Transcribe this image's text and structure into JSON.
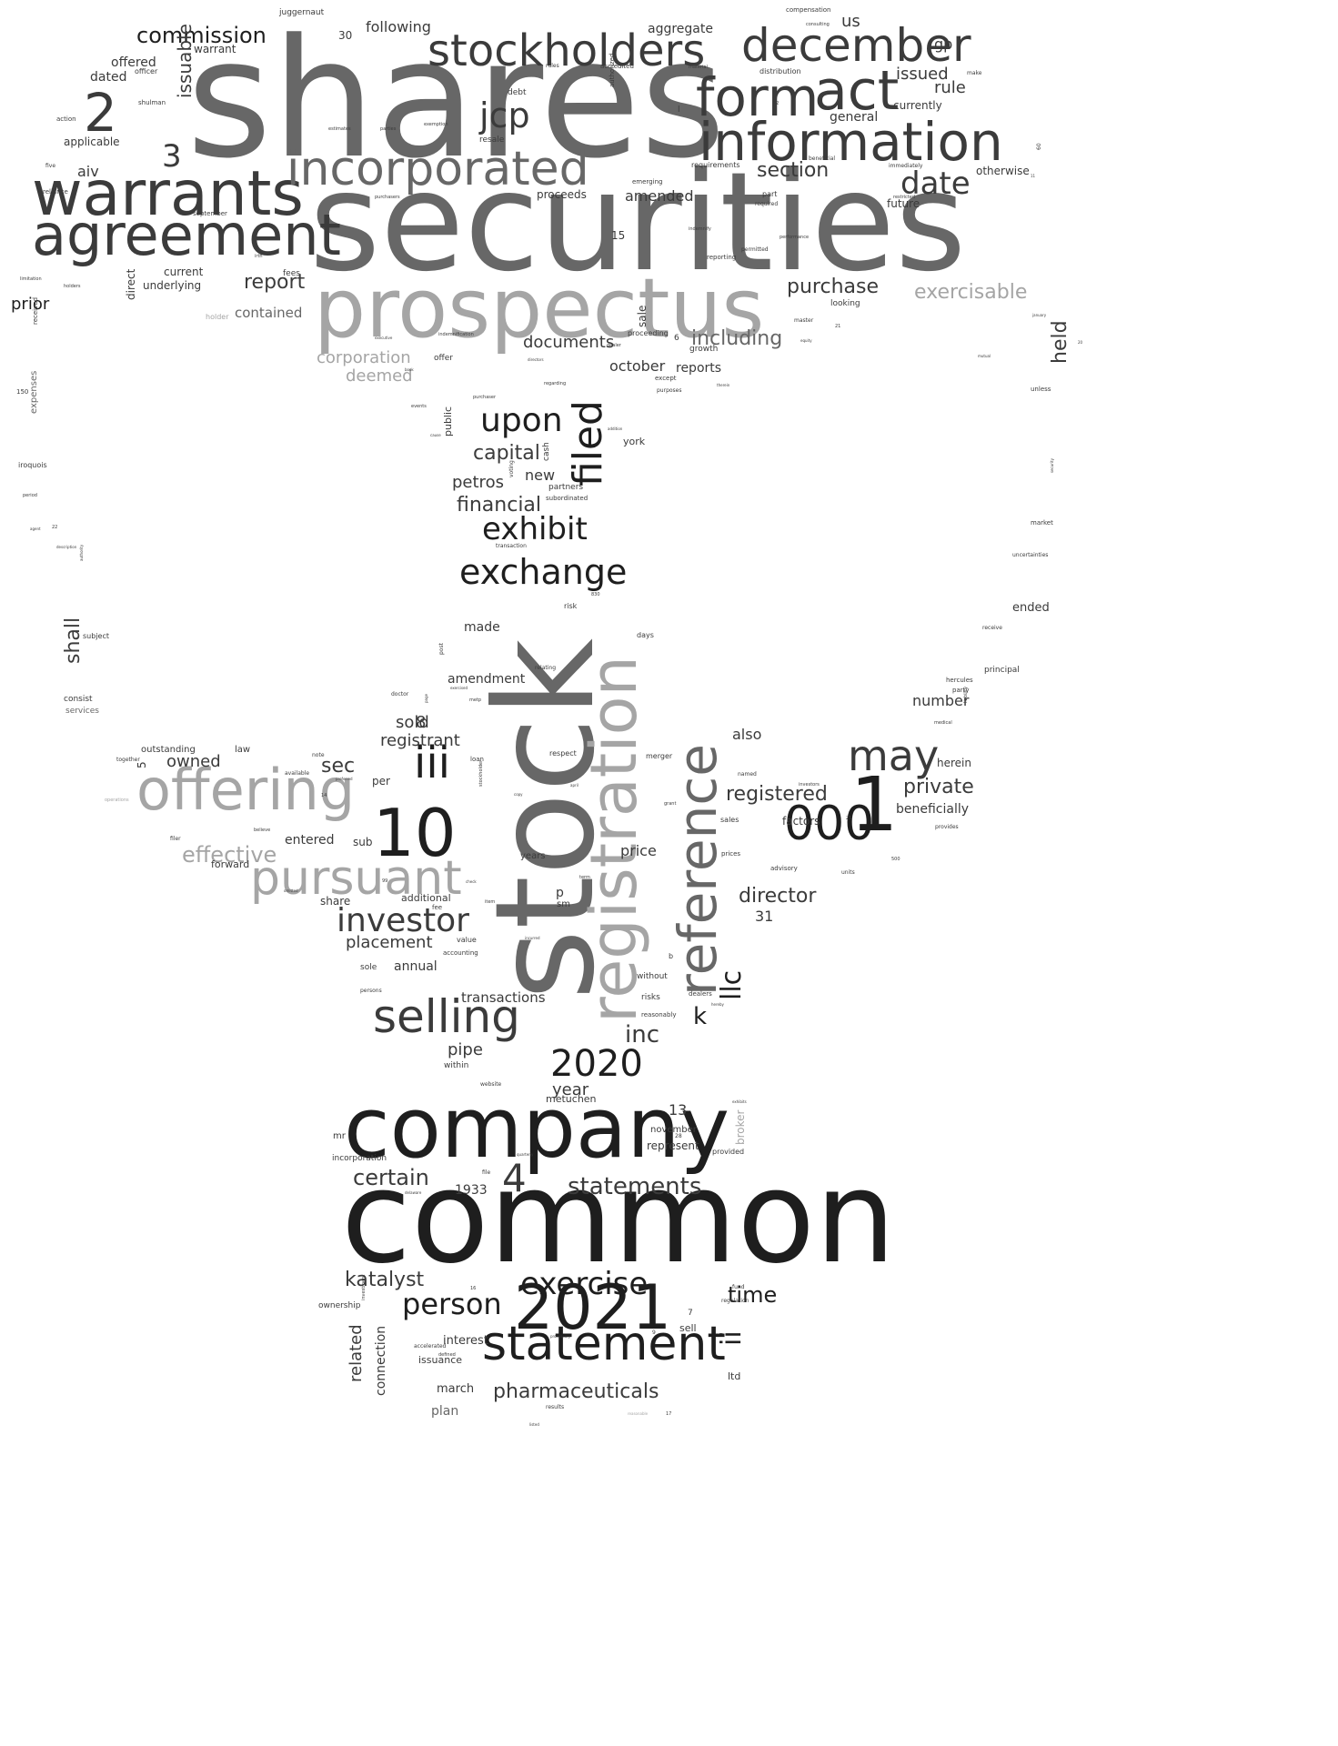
{
  "colors": {
    "background": "#ffffff",
    "tones": [
      "#1e1e1e",
      "#3b3b3b",
      "#676767",
      "#a5a5a5"
    ]
  },
  "words": {
    "shares": "shares",
    "securities": "securities",
    "common": "common",
    "stock": "stock",
    "company": "company",
    "prospectus": "prospectus",
    "registration": "registration",
    "warrants": "warrants",
    "agreement": "agreement",
    "incorporated": "incorporated",
    "information": "information",
    "stockholders": "stockholders",
    "december": "december",
    "form": "form",
    "act": "act",
    "offering": "offering",
    "reference": "reference",
    "selling": "selling",
    "pursuant": "pursuant",
    "statement": "statement",
    "n2021": "2021",
    "n2020": "2020",
    "n10": "10",
    "n000": "000",
    "n1": "1",
    "n2": "2",
    "n3": "3",
    "n4": "4",
    "iii": "iii",
    "may": "may",
    "investor": "investor",
    "exchange": "exchange",
    "exhibit": "exhibit",
    "upon": "upon",
    "filed": "filed",
    "exercise": "exercise",
    "person": "person",
    "date": "date",
    "jcp": "jcp",
    "llc": "llc",
    "ii": "ii",
    "statements": "statements",
    "certain": "certain",
    "katalyst": "katalyst",
    "time": "time",
    "inc": "inc",
    "pharmaceuticals": "pharmaceuticals",
    "commission": "commission",
    "effective": "effective",
    "registered": "registered",
    "director": "director",
    "private": "private",
    "purchase": "purchase",
    "including": "including",
    "section": "section",
    "report": "report",
    "capital": "capital",
    "financial": "financial",
    "documents": "documents",
    "placement": "placement",
    "sec": "sec",
    "shall": "shall",
    "exercisable": "exercisable",
    "issuable": "issuable",
    "held": "held",
    "rule": "rule",
    "issued": "issued",
    "amended": "amended",
    "corporation": "corporation",
    "deemed": "deemed",
    "contained": "contained",
    "prior": "prior",
    "aiv": "aiv",
    "related": "related",
    "connection": "connection",
    "pipe": "pipe",
    "year": "year",
    "k": "k",
    "sold": "sold",
    "n8": "8",
    "registrant": "registrant",
    "owned": "owned",
    "entered": "entered",
    "petros": "petros",
    "new": "new",
    "october": "october",
    "reports": "reports",
    "also": "also",
    "number": "number",
    "beneficially": "beneficially",
    "factors": "factors",
    "price": "price",
    "transactions": "transactions",
    "amendment": "amendment",
    "made": "made",
    "annual": "annual",
    "plan": "plan",
    "march": "march",
    "interest": "interest",
    "issuance": "issuance",
    "ownership": "ownership",
    "incorporation": "incorporation",
    "n1933": "1933",
    "n13": "13",
    "november": "november",
    "represent": "represent",
    "broker": "broker",
    "following": "following",
    "aggregate": "aggregate",
    "us": "us",
    "gp": "gp",
    "general": "general",
    "currently": "currently",
    "otherwise": "otherwise",
    "future": "future",
    "offered": "offered",
    "dated": "dated",
    "warrant": "warrant",
    "applicable": "applicable",
    "underlying": "underlying",
    "current": "current",
    "direct": "direct",
    "expenses": "expenses",
    "n31": "31",
    "n15": "15",
    "n30": "30",
    "n5": "5",
    "n7": "7",
    "n6": "6",
    "sale": "sale",
    "proceeds": "proceeds",
    "additional": "additional",
    "share": "share",
    "sub": "sub",
    "per": "per",
    "forward": "forward",
    "outstanding": "outstanding",
    "law": "law",
    "years": "years",
    "herein": "herein",
    "sell": "sell",
    "ltd": "ltd",
    "metuchen": "metuchen",
    "within": "within",
    "risks": "risks",
    "without": "without",
    "sole": "sole",
    "value": "value",
    "accounting": "accounting",
    "york": "york",
    "partners": "partners",
    "subordinated": "subordinated",
    "cash": "cash",
    "public": "public",
    "debt": "debt",
    "resale": "resale",
    "looking": "looking",
    "growth": "growth",
    "ended": "ended",
    "principal": "principal",
    "hercules": "hercules",
    "party": "party",
    "subject": "subject",
    "consist": "consist",
    "services": "services",
    "iroquois": "iroquois",
    "juggernaut": "juggernaut",
    "compensation": "compensation",
    "distribution": "distribution",
    "requirements": "requirements",
    "emerging": "emerging",
    "part": "part",
    "reporting": "reporting",
    "permitted": "permitted",
    "performance": "performance",
    "master": "master",
    "unless": "unless",
    "market": "market",
    "uncertainties": "uncertainties",
    "receive": "receive",
    "offer": "offer",
    "indemnification": "indemnification",
    "proceeding": "proceeding",
    "dealer": "dealer",
    "except": "except",
    "purposes": "purposes",
    "days": "days",
    "relating": "relating",
    "risk": "risk",
    "transaction": "transaction",
    "respect": "respect",
    "loan": "loan",
    "note": "note",
    "available": "available",
    "together": "together",
    "filer": "filer",
    "believe": "believe",
    "fee": "fee",
    "merger": "merger",
    "named": "named",
    "investors": "investors",
    "sales": "sales",
    "prices": "prices",
    "advisory": "advisory",
    "units": "units",
    "provides": "provides",
    "medical": "medical",
    "liability": "liability",
    "reasonably": "reasonably",
    "dealers": "dealers",
    "website": "website",
    "provided": "provided",
    "fund": "fund",
    "regulation": "regulation",
    "accelerated": "accelerated",
    "defined": "defined",
    "results": "results",
    "listed": "listed",
    "delaware": "delaware",
    "file": "file",
    "quarterly": "quarterly",
    "received": "received",
    "holders": "holders",
    "holder": "holder",
    "reliance": "reliance",
    "limitation": "limitation",
    "september": "september",
    "action": "action",
    "shulman": "shulman",
    "officer": "officer",
    "five": "five",
    "exemption": "exemption",
    "parties": "parties",
    "estimates": "estimates",
    "purchasers": "purchasers",
    "authorized": "authorized",
    "rules": "rules",
    "accredited": "accredited",
    "material": "material",
    "consulting": "consulting",
    "required": "required",
    "indemnify": "indemnify",
    "immediately": "immediately",
    "beneficial": "beneficial",
    "make": "make",
    "period": "period",
    "description": "description",
    "authority": "authority",
    "agent": "agent",
    "n150": "150",
    "n22": "22",
    "n60": "60",
    "n21": "21",
    "n500": "500",
    "n28": "28",
    "n25": "25",
    "n99": "99",
    "n14": "14",
    "n12": "12",
    "n830": "830",
    "n11": "11",
    "n9": "9",
    "n17": "17",
    "n16": "16",
    "n20": "20",
    "security": "security",
    "regarding": "regarding",
    "directors": "directors",
    "purchaser": "purchaser",
    "events": "events",
    "addition": "addition",
    "therein": "therein",
    "executive": "executive",
    "equity": "equity",
    "january": "january",
    "copy": "copy",
    "preferred": "preferred",
    "april": "april",
    "grant": "grant",
    "item": "item",
    "check": "check",
    "term": "term",
    "incurred": "incurred",
    "omitted": "omitted",
    "stockholder": "stockholder",
    "page": "page",
    "post": "post",
    "bioxcel": "bioxcel",
    "metp": "metp",
    "exercised": "exercised",
    "doctor": "doctor",
    "persons": "persons",
    "hereby": "hereby",
    "exhibits": "exhibits",
    "mr": "mr",
    "b": "b",
    "l": "l",
    "p": "p",
    "sm": "sm",
    "irth": "irth",
    "fees": "fees",
    "operations": "operations",
    "restricted": "restricted",
    "voting": "voting",
    "promissory": "promissory",
    "reasonable": "reasonable",
    "investment": "investment",
    "mutual": "mutual",
    "cause": "cause",
    "book": "book",
    "including2": "including"
  }
}
